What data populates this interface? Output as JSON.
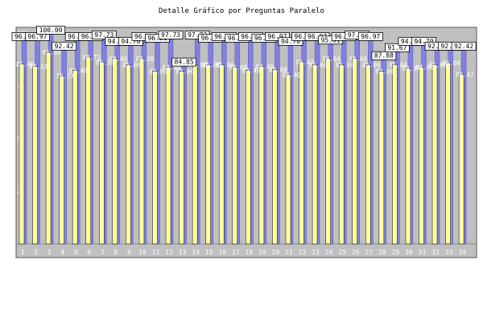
{
  "chart_data": {
    "type": "bar",
    "title": "Detalle Gráfico por Preguntas Paralelo",
    "ylim": [
      0,
      100
    ],
    "y_ticks": [
      25,
      50,
      75,
      100
    ],
    "grid": false,
    "legend": "none",
    "categories": [
      "1",
      "2",
      "3",
      "4",
      "5",
      "6",
      "7",
      "8",
      "9",
      "10",
      "11",
      "12",
      "13",
      "14",
      "15",
      "16",
      "17",
      "18",
      "19",
      "20",
      "21",
      "22",
      "23",
      "24",
      "25",
      "26",
      "27",
      "28",
      "29",
      "30",
      "31",
      "32",
      "33",
      "34"
    ],
    "series": [
      {
        "values": [
          96.97,
          96.97,
          100.0,
          92.42,
          96.97,
          96.97,
          97.73,
          94.7,
          94.7,
          96.97,
          96.21,
          97.73,
          84.85,
          97.73,
          96.21,
          96.97,
          96.21,
          96.97,
          96.21,
          96.97,
          94.7,
          96.97,
          96.97,
          95.31,
          96.97,
          97.73,
          96.97,
          87.88,
          91.67,
          94.7,
          94.7,
          92.42,
          92.42,
          92.42
        ],
        "labels_shown": [
          "96.97",
          "96.97",
          "100.00",
          "92.42",
          "96.97",
          "96.97",
          "97.73",
          "94.70",
          "94.70",
          "96.97",
          "96.21",
          "97.73",
          "84.85",
          "97.73",
          "96.21",
          "96.97",
          "96.21",
          "96.97",
          "96.21",
          "96.97",
          "94.70",
          "96.97",
          "96.97",
          "95.31",
          "96.97",
          "97.73",
          "96.97",
          "87.88",
          "91.67",
          "94.70",
          "94.70",
          "92.42",
          "92.42",
          "92.42"
        ]
      },
      {
        "values": [
          85.4,
          84.33,
          91.0,
          79.77,
          82.48,
          88.71,
          86.3,
          88.0,
          85.0,
          88.0,
          82.0,
          84.0,
          82.0,
          85.0,
          85.0,
          85.0,
          84.0,
          82.49,
          84.4,
          82.8,
          80.4,
          86.47,
          85.0,
          88.04,
          85.0,
          88.0,
          85.0,
          82.0,
          85.04,
          83.37,
          84.0,
          85.0,
          86.0,
          80.47
        ],
        "labels_shown": [
          "85.40",
          "84.33",
          "91.00",
          "79.77",
          "82.48",
          "88.71",
          "86.30",
          "88.00",
          "85.00",
          "88.00",
          "82.00",
          "84.00",
          "82.00",
          "85.00",
          "85.00",
          "85.00",
          "84.00",
          "82.49",
          "84.40",
          "82.80",
          "80.40",
          "86.47",
          "85.00",
          "88.04",
          "85.00",
          "88.00",
          "85.00",
          "82.00",
          "85.04",
          "83.37",
          "84.00",
          "85.00",
          "86.00",
          "80.47"
        ]
      }
    ],
    "colors": {
      "panel": "#c0c0c0",
      "series1": "#8080e0",
      "series2": "#ffffa0",
      "label_box": "#ffffff",
      "tick_text": "#ffffff"
    }
  }
}
